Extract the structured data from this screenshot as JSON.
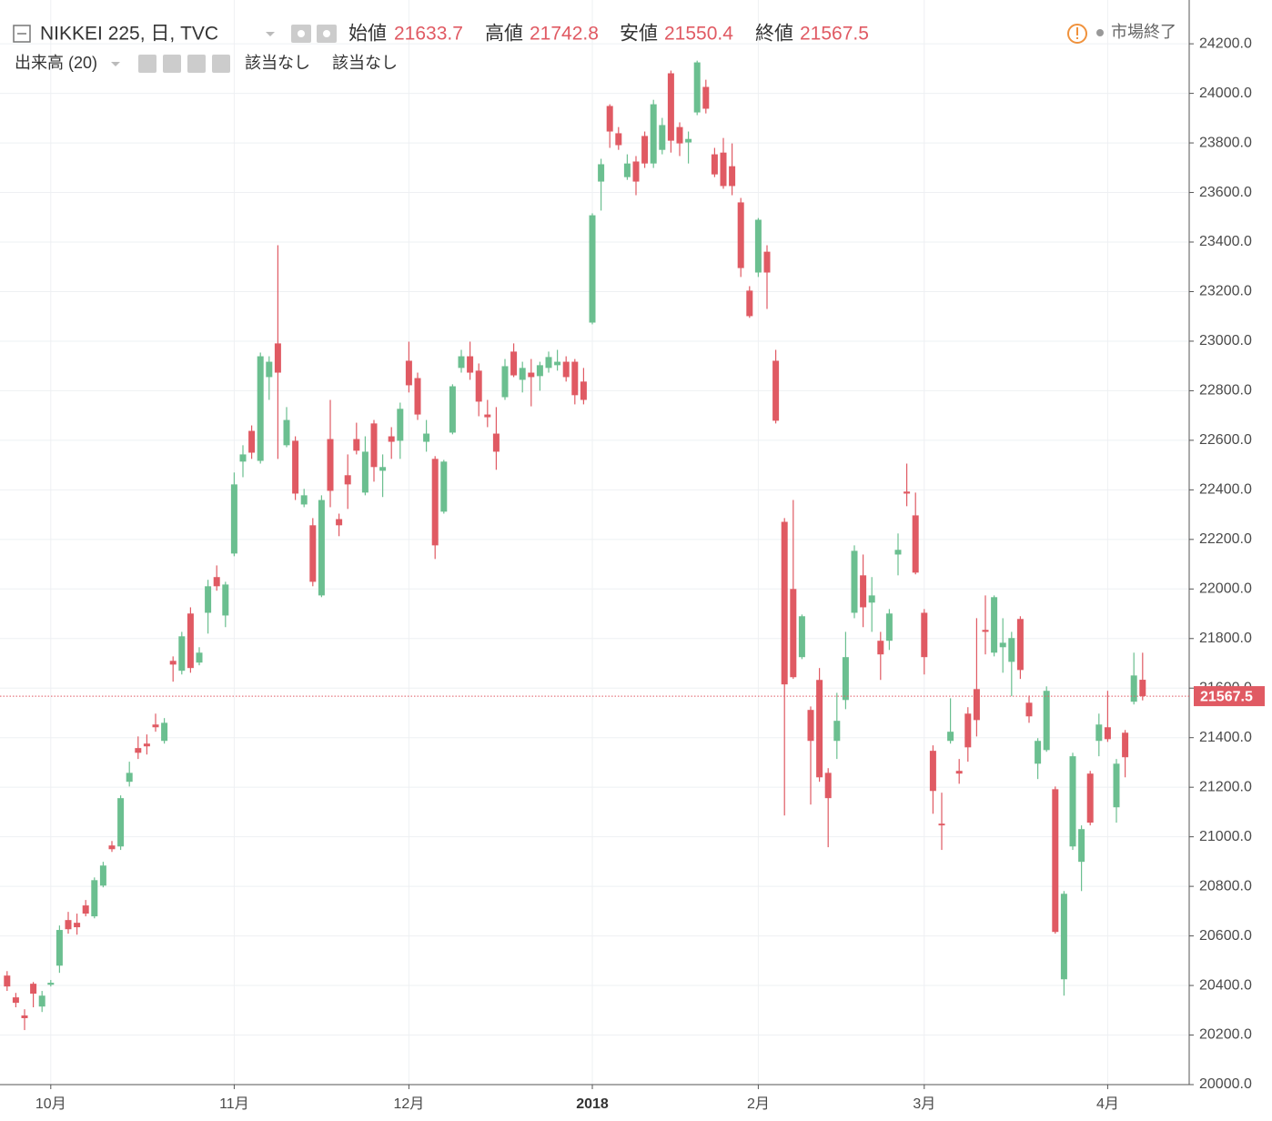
{
  "chart_data": {
    "type": "candlestick",
    "title": "NIKKEI 225, 日, TVC",
    "ohlc_labels": [
      "始値",
      "高値",
      "安値",
      "終値"
    ],
    "status": "市場終了",
    "indicator": {
      "name": "出来高 (20)",
      "values": [
        "該当なし",
        "該当なし"
      ]
    },
    "up_color": "#6bbf90",
    "down_color": "#e05a63",
    "categories": [
      null,
      null,
      null,
      null,
      null,
      "10月",
      null,
      null,
      null,
      null,
      null,
      null,
      null,
      null,
      null,
      null,
      null,
      null,
      null,
      null,
      null,
      null,
      null,
      null,
      null,
      null,
      "11月",
      null,
      null,
      null,
      null,
      null,
      null,
      null,
      null,
      null,
      null,
      null,
      null,
      null,
      null,
      null,
      null,
      null,
      null,
      null,
      "12月",
      null,
      null,
      null,
      null,
      null,
      null,
      null,
      null,
      null,
      null,
      null,
      null,
      null,
      null,
      null,
      null,
      null,
      null,
      null,
      null,
      "2018",
      null,
      null,
      null,
      null,
      null,
      null,
      null,
      null,
      null,
      null,
      null,
      null,
      null,
      null,
      null,
      null,
      null,
      null,
      "2月",
      null,
      null,
      null,
      null,
      null,
      null,
      null,
      null,
      null,
      null,
      null,
      null,
      null,
      null,
      null,
      null,
      null,
      null,
      "3月",
      null,
      null,
      null,
      null,
      null,
      null,
      null,
      null,
      null,
      null,
      null,
      null,
      null,
      null,
      null,
      null,
      null,
      null,
      null,
      null,
      "4月",
      null,
      null,
      null,
      null
    ],
    "open": [
      20440,
      20352,
      20279,
      20407,
      20315,
      20403,
      20480,
      20664,
      20653,
      20723,
      20679,
      20803,
      20965,
      20961,
      21222,
      21358,
      21376,
      21453,
      21387,
      21710,
      21670,
      21901,
      21703,
      21904,
      22048,
      21893,
      22143,
      22514,
      22638,
      22517,
      22855,
      22991,
      22580,
      22598,
      22341,
      22257,
      21974,
      22605,
      22282,
      22459,
      22605,
      22389,
      22668,
      22477,
      22616,
      22598,
      22921,
      22851,
      22594,
      22525,
      22312,
      22631,
      22892,
      22939,
      22881,
      22704,
      22627,
      22774,
      22958,
      22844,
      22873,
      22859,
      22892,
      22903,
      22917,
      22917,
      22837,
      23075,
      23644,
      23949,
      23839,
      23662,
      23725,
      23828,
      23717,
      23772,
      24081,
      23864,
      23802,
      23923,
      24026,
      23754,
      23761,
      23706,
      23560,
      23204,
      23277,
      23361,
      22921,
      22271,
      22000,
      21725,
      21512,
      21633,
      21258,
      21387,
      21552,
      21904,
      22055,
      21945,
      21791,
      21791,
      22139,
      22393,
      22297,
      21904,
      21347,
      21053,
      21387,
      21266,
      21497,
      21596,
      21835,
      21743,
      21765,
      21706,
      21879,
      21541,
      21295,
      21350,
      21192,
      20425,
      20961,
      20899,
      21255,
      21387,
      21442,
      21119,
      21420,
      21545,
      21633.7
    ],
    "high": [
      20458,
      20370,
      20304,
      20414,
      20378,
      20422,
      20642,
      20697,
      20690,
      20745,
      20836,
      20899,
      20983,
      21167,
      21303,
      21405,
      21413,
      21497,
      21479,
      21728,
      21827,
      21926,
      21765,
      22037,
      22095,
      22029,
      22470,
      22580,
      22660,
      22954,
      22939,
      23387,
      22734,
      22616,
      22404,
      22286,
      22378,
      22763,
      22304,
      22543,
      22671,
      22616,
      22682,
      22543,
      22653,
      22752,
      22998,
      22873,
      22682,
      22536,
      22521,
      22826,
      22965,
      22998,
      22910,
      22763,
      22734,
      22928,
      22991,
      22917,
      22928,
      22917,
      22958,
      22965,
      22939,
      22928,
      22892,
      23516,
      23736,
      23956,
      23864,
      23754,
      23747,
      23846,
      23974,
      23901,
      24092,
      23883,
      23846,
      24132,
      24055,
      23780,
      23820,
      23798,
      23578,
      23222,
      23497,
      23387,
      22965,
      22286,
      22359,
      21897,
      21526,
      21681,
      21277,
      21581,
      21827,
      22176,
      22139,
      22048,
      21827,
      21919,
      22224,
      22506,
      22389,
      21919,
      21369,
      21178,
      21559,
      21314,
      21523,
      21882,
      21974,
      21974,
      21882,
      21827,
      21890,
      21570,
      21398,
      21607,
      21203,
      20781,
      21339,
      21046,
      21266,
      21497,
      21589,
      21314,
      21431,
      21743,
      21742.8
    ],
    "low": [
      20378,
      20312,
      20220,
      20312,
      20293,
      20396,
      20451,
      20609,
      20605,
      20679,
      20671,
      20796,
      20939,
      20947,
      21203,
      21314,
      21332,
      21424,
      21376,
      21626,
      21655,
      21662,
      21692,
      21820,
      21993,
      21846,
      22132,
      22451,
      22525,
      22506,
      22763,
      22525,
      22572,
      22359,
      22330,
      22011,
      21967,
      22330,
      22213,
      22323,
      22543,
      22378,
      22433,
      22371,
      22525,
      22525,
      22793,
      22682,
      22554,
      22121,
      22304,
      22624,
      22873,
      22844,
      22697,
      22653,
      22481,
      22763,
      22855,
      22793,
      22737,
      22800,
      22873,
      22881,
      22837,
      22745,
      22745,
      23068,
      23527,
      23780,
      23772,
      23651,
      23589,
      23699,
      23699,
      23754,
      23761,
      23747,
      23717,
      23912,
      23919,
      23662,
      23615,
      23589,
      23259,
      23094,
      23259,
      23130,
      22668,
      21086,
      21637,
      21717,
      21130,
      21222,
      20958,
      21314,
      21515,
      21882,
      21846,
      21827,
      21633,
      21754,
      22055,
      22334,
      22059,
      21655,
      21093,
      20947,
      21376,
      21214,
      21303,
      21405,
      21736,
      21728,
      21662,
      21567,
      21637,
      21460,
      21233,
      21343,
      20609,
      20359,
      20947,
      20781,
      21046,
      21325,
      21383,
      21057,
      21240,
      21534,
      21550.4
    ],
    "close": [
      20396,
      20330,
      20268,
      20367,
      20359,
      20411,
      20624,
      20627,
      20635,
      20690,
      20825,
      20884,
      20950,
      21156,
      21258,
      21339,
      21365,
      21442,
      21460,
      21695,
      21809,
      21681,
      21743,
      22011,
      22011,
      22018,
      22422,
      22543,
      22550,
      22939,
      22917,
      22873,
      22682,
      22385,
      22378,
      22029,
      22359,
      22396,
      22257,
      22422,
      22558,
      22554,
      22492,
      22492,
      22594,
      22727,
      22822,
      22704,
      22627,
      22176,
      22514,
      22818,
      22939,
      22873,
      22756,
      22693,
      22554,
      22899,
      22862,
      22892,
      22855,
      22903,
      22936,
      22917,
      22855,
      22782,
      22763,
      23508,
      23714,
      23846,
      23791,
      23717,
      23644,
      23717,
      23956,
      23872,
      23809,
      23798,
      23816,
      24125,
      23938,
      23673,
      23626,
      23626,
      23295,
      23101,
      23490,
      23277,
      22679,
      21615,
      21644,
      21890,
      21387,
      21240,
      21156,
      21468,
      21725,
      22154,
      21926,
      21974,
      21736,
      21901,
      22158,
      22385,
      22066,
      21725,
      21185,
      21046,
      21424,
      21255,
      21361,
      21471,
      21827,
      21967,
      21783,
      21802,
      21673,
      21486,
      21387,
      21589,
      20616,
      20770,
      21325,
      21031,
      21057,
      21453,
      21394,
      21295,
      21321,
      21651,
      21567.5
    ],
    "ylim": [
      20000,
      24340
    ],
    "yticks": [
      {
        "value": 20000,
        "label": "20000.0"
      },
      {
        "value": 20200,
        "label": "20200.0"
      },
      {
        "value": 20400,
        "label": "20400.0"
      },
      {
        "value": 20600,
        "label": "20600.0"
      },
      {
        "value": 20800,
        "label": "20800.0"
      },
      {
        "value": 21000,
        "label": "21000.0"
      },
      {
        "value": 21200,
        "label": "21200.0"
      },
      {
        "value": 21400,
        "label": "21400.0"
      },
      {
        "value": 21600,
        "label": "21600.0"
      },
      {
        "value": 21800,
        "label": "21800.0"
      },
      {
        "value": 22000,
        "label": "22000.0"
      },
      {
        "value": 22200,
        "label": "22200.0"
      },
      {
        "value": 22400,
        "label": "22400.0"
      },
      {
        "value": 22600,
        "label": "22600.0"
      },
      {
        "value": 22800,
        "label": "22800.0"
      },
      {
        "value": 23000,
        "label": "23000.0"
      },
      {
        "value": 23200,
        "label": "23200.0"
      },
      {
        "value": 23400,
        "label": "23400.0"
      },
      {
        "value": 23600,
        "label": "23600.0"
      },
      {
        "value": 23800,
        "label": "23800.0"
      },
      {
        "value": 24000,
        "label": "24000.0"
      },
      {
        "value": 24200,
        "label": "24200.0"
      }
    ],
    "grid": true
  }
}
